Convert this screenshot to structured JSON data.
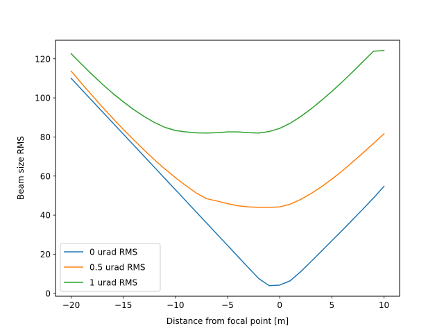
{
  "chart_data": {
    "type": "line",
    "title": "",
    "xlabel": "Distance from focal point [m]",
    "ylabel": "Beam size RMS",
    "xlim": [
      -21.5,
      11.5
    ],
    "ylim": [
      -1.5,
      129.5
    ],
    "xticks": [
      -20,
      -15,
      -10,
      -5,
      0,
      5,
      10
    ],
    "yticks": [
      0,
      20,
      40,
      60,
      80,
      100,
      120
    ],
    "xtick_labels": [
      "−20",
      "−15",
      "−10",
      "−5",
      "0",
      "5",
      "10"
    ],
    "ytick_labels": [
      "0",
      "20",
      "40",
      "60",
      "80",
      "100",
      "120"
    ],
    "grid": false,
    "legend_position": "lower-left",
    "x": [
      -20,
      -19,
      -18,
      -17,
      -16,
      -15,
      -14,
      -13,
      -12,
      -11,
      -10,
      -9,
      -8,
      -7,
      -6,
      -5,
      -4,
      -3,
      -2,
      -1,
      0,
      1,
      2,
      3,
      4,
      5,
      6,
      7,
      8,
      9,
      10
    ],
    "series": [
      {
        "name": "0 urad RMS",
        "color": "#1f77b4",
        "values": [
          110.0,
          104.3,
          98.6,
          92.9,
          87.2,
          81.5,
          75.8,
          70.1,
          64.4,
          58.7,
          53.0,
          47.3,
          41.6,
          35.9,
          30.2,
          24.5,
          18.8,
          13.1,
          7.5,
          3.9,
          4.2,
          6.4,
          11.0,
          16.2,
          21.5,
          26.9,
          32.2,
          37.7,
          43.2,
          48.8,
          54.7
        ]
      },
      {
        "name": "0.5 urad RMS",
        "color": "#ff7f0e",
        "values": [
          113.7,
          107.4,
          101.3,
          95.3,
          89.5,
          83.9,
          78.5,
          73.3,
          68.3,
          63.6,
          59.2,
          55.1,
          51.3,
          48.4,
          47.2,
          45.9,
          44.8,
          44.2,
          44.0,
          44.0,
          44.2,
          45.6,
          48.0,
          51.0,
          54.5,
          58.4,
          62.6,
          67.2,
          71.9,
          76.7,
          81.6
        ]
      },
      {
        "name": "1 urad RMS",
        "color": "#2ca02c",
        "values": [
          122.6,
          117.2,
          112.0,
          107.0,
          102.3,
          98.0,
          94.0,
          90.5,
          87.4,
          84.9,
          83.3,
          82.6,
          82.1,
          82.0,
          82.2,
          82.6,
          82.6,
          82.2,
          82.0,
          82.8,
          84.4,
          87.0,
          90.4,
          94.3,
          98.7,
          103.3,
          108.2,
          113.3,
          118.6,
          123.9,
          124.2
        ]
      }
    ]
  }
}
